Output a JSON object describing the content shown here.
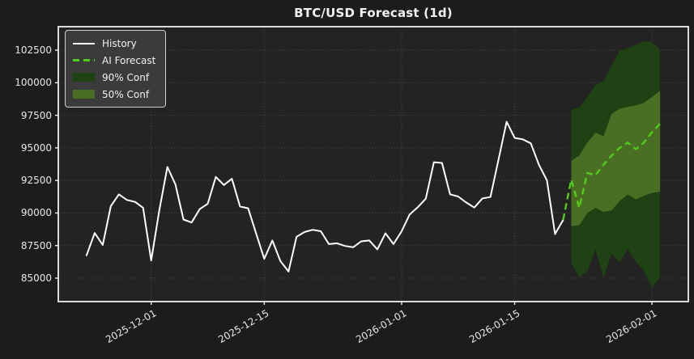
{
  "title": "BTC/USD Forecast (1d)",
  "colors": {
    "history": "#ffffff",
    "forecast": "#52cc1a",
    "conf90_band": "#1f4214",
    "conf50_band": "#4a6e23",
    "grid": "#6a6a6a",
    "spine": "#f0f0f0",
    "tick_label": "#e8e8e8"
  },
  "chart_data": {
    "type": "line",
    "title": "BTC/USD Forecast (1d)",
    "grid": true,
    "legend_position": "upper left",
    "ylim": [
      83200,
      104300
    ],
    "xlim": [
      "2025-11-19T12:00:00Z",
      "2026-02-05T12:00:00Z"
    ],
    "yticks": [
      85000,
      87500,
      90000,
      92500,
      95000,
      97500,
      100000,
      102500
    ],
    "xticks": [
      "2025-12-01",
      "2025-12-15",
      "2026-01-01",
      "2026-01-15",
      "2026-02-01"
    ],
    "series": [
      {
        "name": "History",
        "type": "line",
        "color": "#ffffff",
        "dates": [
          "2025-11-23",
          "2025-11-24",
          "2025-11-25",
          "2025-11-26",
          "2025-11-27",
          "2025-11-28",
          "2025-11-29",
          "2025-11-30",
          "2025-12-01",
          "2025-12-02",
          "2025-12-03",
          "2025-12-04",
          "2025-12-05",
          "2025-12-06",
          "2025-12-07",
          "2025-12-08",
          "2025-12-09",
          "2025-12-10",
          "2025-12-11",
          "2025-12-12",
          "2025-12-13",
          "2025-12-14",
          "2025-12-15",
          "2025-12-16",
          "2025-12-17",
          "2025-12-18",
          "2025-12-19",
          "2025-12-20",
          "2025-12-21",
          "2025-12-22",
          "2025-12-23",
          "2025-12-24",
          "2025-12-25",
          "2025-12-26",
          "2025-12-27",
          "2025-12-28",
          "2025-12-29",
          "2025-12-30",
          "2025-12-31",
          "2026-01-01",
          "2026-01-02",
          "2026-01-03",
          "2026-01-04",
          "2026-01-05",
          "2026-01-06",
          "2026-01-07",
          "2026-01-08",
          "2026-01-09",
          "2026-01-10",
          "2026-01-11",
          "2026-01-12",
          "2026-01-13",
          "2026-01-14",
          "2026-01-15",
          "2026-01-16",
          "2026-01-17",
          "2026-01-18",
          "2026-01-19",
          "2026-01-20",
          "2026-01-21"
        ],
        "values": [
          86750,
          88460,
          87550,
          90520,
          91430,
          91000,
          90850,
          90400,
          86350,
          90200,
          93530,
          92200,
          89500,
          89270,
          90300,
          90700,
          92770,
          92150,
          92625,
          90500,
          90360,
          88400,
          86480,
          87890,
          86300,
          85510,
          88170,
          88545,
          88710,
          88600,
          87610,
          87675,
          87470,
          87370,
          87825,
          87890,
          87210,
          88445,
          87610,
          88590,
          89890,
          90440,
          91100,
          93900,
          93840,
          91430,
          91265,
          90810,
          90420,
          91120,
          91225,
          94100,
          97000,
          95760,
          95655,
          95345,
          93700,
          92500,
          88380,
          89470
        ]
      },
      {
        "name": "AI Forecast",
        "type": "dashed-line",
        "color": "#52cc1a",
        "dates": [
          "2026-01-21",
          "2026-01-22",
          "2026-01-23",
          "2026-01-24",
          "2026-01-25",
          "2026-01-26",
          "2026-01-27",
          "2026-01-28",
          "2026-01-29",
          "2026-01-30",
          "2026-01-31",
          "2026-02-01",
          "2026-02-02"
        ],
        "values": [
          89470,
          92560,
          90400,
          93080,
          92900,
          93700,
          94400,
          95000,
          95400,
          94900,
          95400,
          96200,
          96850
        ]
      },
      {
        "name": "90% Conf",
        "type": "band",
        "color": "#1f4214",
        "dates": [
          "2026-01-22",
          "2026-01-23",
          "2026-01-24",
          "2026-01-25",
          "2026-01-26",
          "2026-01-27",
          "2026-01-28",
          "2026-01-29",
          "2026-01-30",
          "2026-01-31",
          "2026-02-01",
          "2026-02-02"
        ],
        "lower": [
          86200,
          85050,
          85500,
          87200,
          85000,
          86900,
          86200,
          87250,
          86280,
          85560,
          84300,
          85050
        ],
        "upper": [
          97900,
          98100,
          98900,
          99800,
          100100,
          101300,
          102450,
          102650,
          102900,
          103200,
          103100,
          102550
        ]
      },
      {
        "name": "50% Conf",
        "type": "band",
        "color": "#4a6e23",
        "dates": [
          "2026-01-22",
          "2026-01-23",
          "2026-01-24",
          "2026-01-25",
          "2026-01-26",
          "2026-01-27",
          "2026-01-28",
          "2026-01-29",
          "2026-01-30",
          "2026-01-31",
          "2026-02-01",
          "2026-02-02"
        ],
        "lower": [
          89000,
          89060,
          90000,
          90400,
          90090,
          90200,
          90920,
          91430,
          91050,
          91330,
          91540,
          91640
        ],
        "upper": [
          94000,
          94400,
          95400,
          96150,
          95900,
          97600,
          98000,
          98150,
          98250,
          98450,
          98900,
          99370
        ]
      }
    ]
  }
}
